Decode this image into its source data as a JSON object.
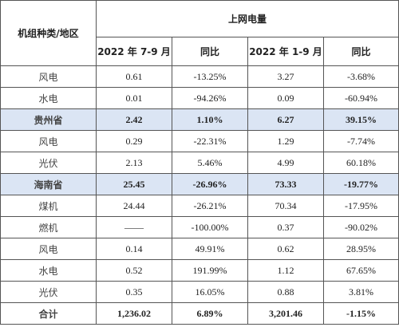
{
  "header": {
    "group_label": "机组种类/地区",
    "title": "上网电量",
    "columns": [
      "2022 年 7-9 月",
      "同比",
      "2022 年 1-9 月",
      "同比"
    ]
  },
  "rows": [
    [
      "风电",
      "0.61",
      "-13.25%",
      "3.27",
      "-3.68%"
    ],
    [
      "水电",
      "0.01",
      "-94.26%",
      "0.09",
      "-60.94%"
    ],
    [
      "贵州省",
      "2.42",
      "1.10%",
      "6.27",
      "39.15%"
    ],
    [
      "风电",
      "0.29",
      "-22.31%",
      "1.29",
      "-7.74%"
    ],
    [
      "光伏",
      "2.13",
      "5.46%",
      "4.99",
      "60.18%"
    ],
    [
      "海南省",
      "25.45",
      "-26.96%",
      "73.33",
      "-19.77%"
    ],
    [
      "煤机",
      "24.44",
      "-26.21%",
      "70.34",
      "-17.95%"
    ],
    [
      "燃机",
      "——",
      "-100.00%",
      "0.37",
      "-90.02%"
    ],
    [
      "风电",
      "0.14",
      "49.91%",
      "0.62",
      "28.95%"
    ],
    [
      "水电",
      "0.52",
      "191.99%",
      "1.12",
      "67.65%"
    ],
    [
      "光伏",
      "0.35",
      "16.05%",
      "0.88",
      "3.81%"
    ],
    [
      "合计",
      "1,236.02",
      "6.89%",
      "3,201.46",
      "-1.15%"
    ]
  ]
}
